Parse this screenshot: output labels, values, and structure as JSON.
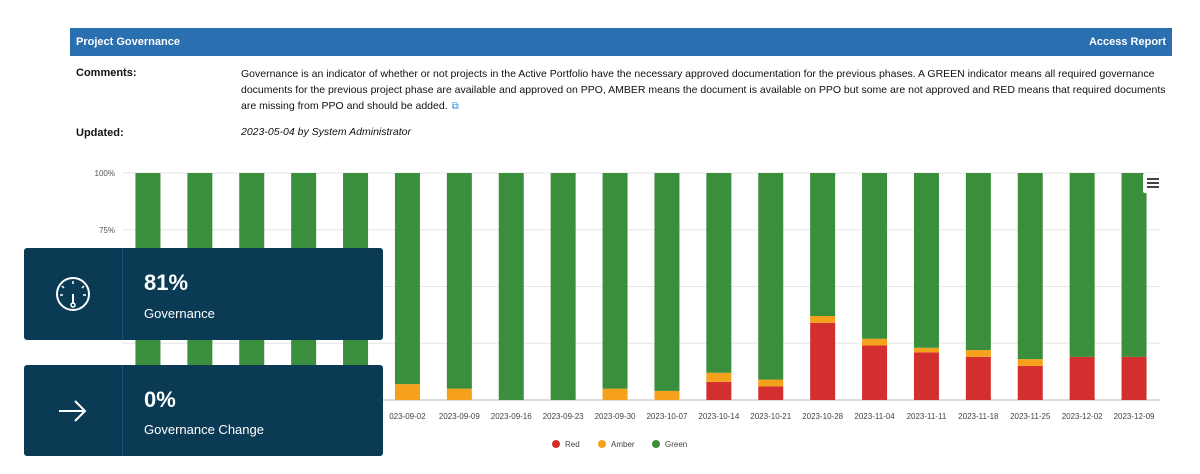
{
  "header": {
    "title": "Project Governance",
    "access_link": "Access Report"
  },
  "comments": {
    "label": "Comments:",
    "text": "Governance is an indicator of whether or not projects in the Active Portfolio have the necessary approved documentation for the previous phases. A GREEN indicator means all required governance documents for the previous project phase are available and approved on PPO, AMBER means the document is available on PPO but some are not approved and RED means that required documents are missing from PPO and should be added."
  },
  "updated": {
    "label": "Updated:",
    "text": "2023-05-04 by System Administrator"
  },
  "cards": [
    {
      "value": "81%",
      "caption": "Governance",
      "icon": "gauge-icon"
    },
    {
      "value": "0%",
      "caption": "Governance Change",
      "icon": "arrow-right-icon"
    }
  ],
  "chart_data": {
    "type": "bar",
    "stacked": true,
    "y_tick_labels": [
      "100%",
      "75%"
    ],
    "ylim": [
      0,
      100
    ],
    "categories": [
      "",
      "",
      "",
      "",
      "",
      "023-09-02",
      "2023-09-09",
      "2023-09-16",
      "2023-09-23",
      "2023-09-30",
      "2023-10-07",
      "2023-10-14",
      "2023-10-21",
      "2023-10-28",
      "2023-11-04",
      "2023-11-11",
      "2023-11-18",
      "2023-11-25",
      "2023-12-02",
      "2023-12-09"
    ],
    "series": [
      {
        "name": "Red",
        "color": "#d32f2f",
        "values": [
          0,
          0,
          0,
          0,
          0,
          0,
          0,
          0,
          0,
          0,
          0,
          8,
          6,
          34,
          24,
          21,
          19,
          15,
          19,
          19
        ]
      },
      {
        "name": "Amber",
        "color": "#f5a11c",
        "values": [
          0,
          0,
          0,
          0,
          0,
          7,
          5,
          0,
          0,
          5,
          4,
          4,
          3,
          3,
          3,
          2,
          3,
          3,
          0,
          0
        ]
      },
      {
        "name": "Green",
        "color": "#3a8e3c",
        "values": [
          100,
          100,
          100,
          100,
          100,
          93,
          95,
          100,
          100,
          95,
          96,
          88,
          91,
          63,
          73,
          77,
          78,
          82,
          81,
          81
        ]
      }
    ],
    "legend": [
      "Red",
      "Amber",
      "Green"
    ]
  }
}
